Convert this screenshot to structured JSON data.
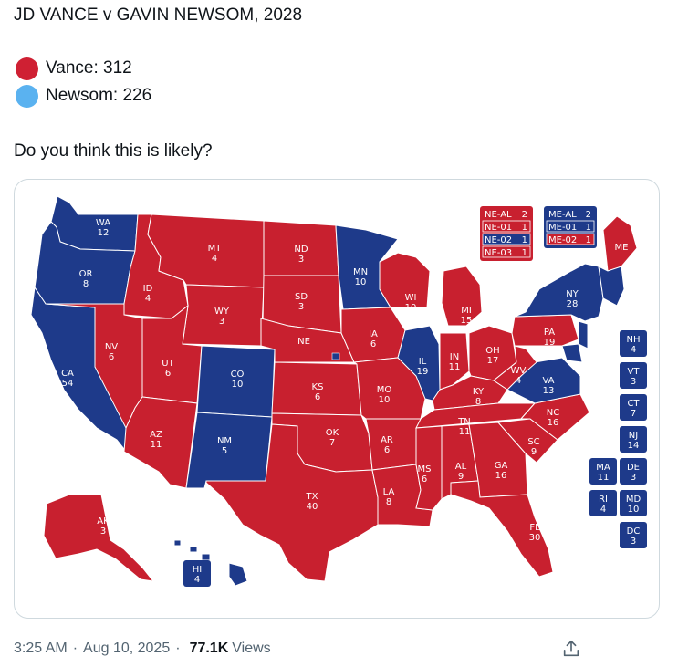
{
  "post": {
    "title": "JD VANCE v GAVIN NEWSOM, 2028",
    "legend": [
      {
        "label": "Vance: 312",
        "color": "#cf2033"
      },
      {
        "label": "Newsom: 226",
        "color": "#5ab2f0"
      }
    ],
    "question": "Do you think this is likely?"
  },
  "colors": {
    "red": "#c8202f",
    "blue": "#1e3a8a"
  },
  "map": {
    "states": [
      {
        "abbr": "WA",
        "ev": "12",
        "party": "D"
      },
      {
        "abbr": "OR",
        "ev": "8",
        "party": "D"
      },
      {
        "abbr": "CA",
        "ev": "54",
        "party": "D"
      },
      {
        "abbr": "ID",
        "ev": "4",
        "party": "R"
      },
      {
        "abbr": "NV",
        "ev": "6",
        "party": "R"
      },
      {
        "abbr": "MT",
        "ev": "4",
        "party": "R"
      },
      {
        "abbr": "WY",
        "ev": "3",
        "party": "R"
      },
      {
        "abbr": "UT",
        "ev": "6",
        "party": "R"
      },
      {
        "abbr": "AZ",
        "ev": "11",
        "party": "R"
      },
      {
        "abbr": "CO",
        "ev": "10",
        "party": "D"
      },
      {
        "abbr": "NM",
        "ev": "5",
        "party": "D"
      },
      {
        "abbr": "ND",
        "ev": "3",
        "party": "R"
      },
      {
        "abbr": "SD",
        "ev": "3",
        "party": "R"
      },
      {
        "abbr": "NE",
        "ev": "",
        "party": "R"
      },
      {
        "abbr": "KS",
        "ev": "6",
        "party": "R"
      },
      {
        "abbr": "OK",
        "ev": "7",
        "party": "R"
      },
      {
        "abbr": "TX",
        "ev": "40",
        "party": "R"
      },
      {
        "abbr": "MN",
        "ev": "10",
        "party": "D"
      },
      {
        "abbr": "IA",
        "ev": "6",
        "party": "R"
      },
      {
        "abbr": "MO",
        "ev": "10",
        "party": "R"
      },
      {
        "abbr": "AR",
        "ev": "6",
        "party": "R"
      },
      {
        "abbr": "LA",
        "ev": "8",
        "party": "R"
      },
      {
        "abbr": "WI",
        "ev": "10",
        "party": "R"
      },
      {
        "abbr": "IL",
        "ev": "19",
        "party": "D"
      },
      {
        "abbr": "MI",
        "ev": "15",
        "party": "R"
      },
      {
        "abbr": "IN",
        "ev": "11",
        "party": "R"
      },
      {
        "abbr": "OH",
        "ev": "17",
        "party": "R"
      },
      {
        "abbr": "KY",
        "ev": "8",
        "party": "R"
      },
      {
        "abbr": "TN",
        "ev": "11",
        "party": "R"
      },
      {
        "abbr": "MS",
        "ev": "6",
        "party": "R"
      },
      {
        "abbr": "AL",
        "ev": "9",
        "party": "R"
      },
      {
        "abbr": "GA",
        "ev": "16",
        "party": "R"
      },
      {
        "abbr": "FL",
        "ev": "30",
        "party": "R"
      },
      {
        "abbr": "SC",
        "ev": "9",
        "party": "R"
      },
      {
        "abbr": "NC",
        "ev": "16",
        "party": "R"
      },
      {
        "abbr": "VA",
        "ev": "13",
        "party": "D"
      },
      {
        "abbr": "WV",
        "ev": "4",
        "party": "R"
      },
      {
        "abbr": "PA",
        "ev": "19",
        "party": "R"
      },
      {
        "abbr": "NY",
        "ev": "28",
        "party": "D"
      },
      {
        "abbr": "ME",
        "ev": "",
        "party": "R"
      },
      {
        "abbr": "AK",
        "ev": "3",
        "party": "R"
      },
      {
        "abbr": "HI",
        "ev": "4",
        "party": "D"
      }
    ],
    "ne_districts": [
      {
        "label": "NE-AL",
        "ev": "2",
        "party": "R"
      },
      {
        "label": "NE-01",
        "ev": "1",
        "party": "R"
      },
      {
        "label": "NE-02",
        "ev": "1",
        "party": "D"
      },
      {
        "label": "NE-03",
        "ev": "1",
        "party": "R"
      }
    ],
    "me_districts": [
      {
        "label": "ME-AL",
        "ev": "2",
        "party": "D"
      },
      {
        "label": "ME-01",
        "ev": "1",
        "party": "D"
      },
      {
        "label": "ME-02",
        "ev": "1",
        "party": "R"
      }
    ],
    "small_states": [
      {
        "abbr": "NH",
        "ev": "4",
        "party": "D"
      },
      {
        "abbr": "VT",
        "ev": "3",
        "party": "D"
      },
      {
        "abbr": "CT",
        "ev": "7",
        "party": "D"
      },
      {
        "abbr": "NJ",
        "ev": "14",
        "party": "D"
      },
      {
        "abbr": "MA",
        "ev": "11",
        "party": "D"
      },
      {
        "abbr": "DE",
        "ev": "3",
        "party": "D"
      },
      {
        "abbr": "RI",
        "ev": "4",
        "party": "D"
      },
      {
        "abbr": "MD",
        "ev": "10",
        "party": "D"
      },
      {
        "abbr": "DC",
        "ev": "3",
        "party": "D"
      }
    ]
  },
  "meta": {
    "time": "3:25 AM",
    "date": "Aug 10, 2025",
    "views_count": "77.1K",
    "views_label": "Views"
  }
}
